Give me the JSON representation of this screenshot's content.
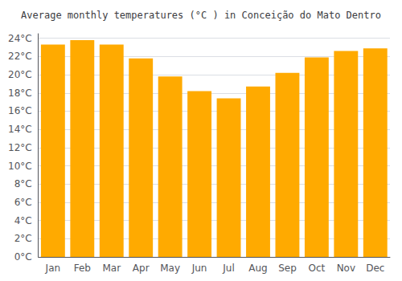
{
  "chart_data": {
    "type": "bar",
    "title": "Average monthly temperatures (°C ) in Conceição do Mato Dentro",
    "categories": [
      "Jan",
      "Feb",
      "Mar",
      "Apr",
      "May",
      "Jun",
      "Jul",
      "Aug",
      "Sep",
      "Oct",
      "Nov",
      "Dec"
    ],
    "values": [
      23.3,
      23.8,
      23.3,
      21.8,
      19.8,
      18.2,
      17.4,
      18.7,
      20.2,
      21.9,
      22.6,
      22.9
    ],
    "color": "#FFAA00",
    "ylim": [
      0,
      24.5
    ],
    "yticks": [
      {
        "value": 0,
        "label": "0°C"
      },
      {
        "value": 2,
        "label": "2°C"
      },
      {
        "value": 4,
        "label": "4°C"
      },
      {
        "value": 6,
        "label": "6°C"
      },
      {
        "value": 8,
        "label": "8°C"
      },
      {
        "value": 10,
        "label": "10°C"
      },
      {
        "value": 12,
        "label": "12°C"
      },
      {
        "value": 14,
        "label": "14°C"
      },
      {
        "value": 16,
        "label": "16°C"
      },
      {
        "value": 18,
        "label": "18°C"
      },
      {
        "value": 20,
        "label": "20°C"
      },
      {
        "value": 22,
        "label": "22°C"
      },
      {
        "value": 24,
        "label": "24°C"
      }
    ],
    "grid": true
  }
}
